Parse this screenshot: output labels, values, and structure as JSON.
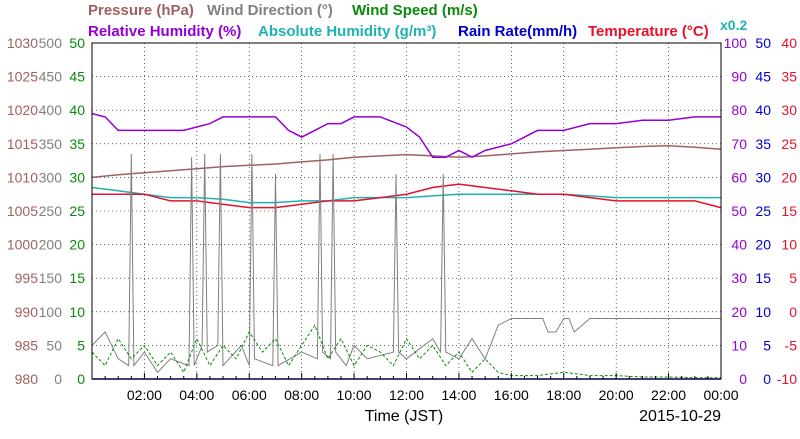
{
  "chart_data": {
    "type": "line",
    "date": "2015-10-29",
    "xlabel": "Time (JST)",
    "x_ticks": [
      "02:00",
      "04:00",
      "06:00",
      "08:00",
      "10:00",
      "12:00",
      "14:00",
      "16:00",
      "18:00",
      "20:00",
      "22:00",
      "00:00"
    ],
    "x_range_hours": [
      0,
      24
    ],
    "legend": {
      "row1": [
        {
          "text": "Pressure (hPa)",
          "color": "#a06060"
        },
        {
          "text": "Wind Direction (°)",
          "color": "#808080"
        },
        {
          "text": "Wind Speed (m/s)",
          "color": "#0a8a0a"
        }
      ],
      "row2": [
        {
          "text": "Relative Humidity (%)",
          "color": "#9400d3"
        },
        {
          "text": "Absolute Humidity (g/m³)",
          "color": "#20b2b2"
        },
        {
          "text": "Rain Rate(mm/h)",
          "color": "#0000cc"
        },
        {
          "text": "Temperature (°C)",
          "color": "#e8102a"
        },
        {
          "text": "x0.2",
          "color": "#20b2b2"
        }
      ]
    },
    "axes": {
      "pressure": {
        "color": "#a06060",
        "ticks": [
          "1030",
          "1025",
          "1020",
          "1015",
          "1010",
          "1005",
          "1000",
          "995",
          "990",
          "985",
          "980"
        ],
        "range": [
          980,
          1030
        ]
      },
      "wind_direction": {
        "color": "#808080",
        "ticks": [
          "500",
          "450",
          "400",
          "350",
          "300",
          "250",
          "200",
          "150",
          "100",
          "50",
          "0"
        ],
        "range": [
          0,
          500
        ]
      },
      "wind_speed": {
        "color": "#0a8a0a",
        "ticks": [
          "50",
          "45",
          "40",
          "35",
          "30",
          "25",
          "20",
          "15",
          "10",
          "5",
          "0"
        ],
        "range": [
          0,
          50
        ]
      },
      "relative_humidity": {
        "color": "#9400d3",
        "ticks": [
          "100",
          "90",
          "80",
          "70",
          "60",
          "50",
          "40",
          "30",
          "20",
          "10",
          "0"
        ],
        "range": [
          0,
          100
        ]
      },
      "rain_rate": {
        "color": "#0000cc",
        "ticks": [
          "50",
          "45",
          "40",
          "35",
          "30",
          "25",
          "20",
          "15",
          "10",
          "5",
          "0"
        ],
        "range": [
          0,
          50
        ]
      },
      "temperature": {
        "color": "#e8102a",
        "ticks": [
          "40",
          "35",
          "30",
          "25",
          "20",
          "15",
          "10",
          "5",
          "0",
          "-5",
          "-10"
        ],
        "range": [
          -10,
          40
        ]
      }
    },
    "grid": true,
    "series": [
      {
        "name": "Pressure (hPa)",
        "axis": "pressure",
        "color": "#a06060",
        "x": [
          0,
          1,
          2,
          3,
          4,
          5,
          6,
          7,
          8,
          9,
          10,
          11,
          12,
          13,
          14,
          15,
          16,
          17,
          18,
          19,
          20,
          21,
          22,
          23,
          24
        ],
        "y": [
          1010,
          1010.4,
          1010.7,
          1011,
          1011.3,
          1011.6,
          1011.8,
          1012,
          1012.3,
          1012.6,
          1013,
          1013.2,
          1013.4,
          1013.2,
          1013,
          1013.2,
          1013.5,
          1013.8,
          1014,
          1014.2,
          1014.4,
          1014.6,
          1014.7,
          1014.5,
          1014.2
        ]
      },
      {
        "name": "Relative Humidity (%)",
        "axis": "relative_humidity",
        "color": "#9400d3",
        "x": [
          0,
          0.5,
          1,
          2,
          3,
          3.5,
          4,
          4.5,
          5,
          6,
          7,
          7.5,
          8,
          8.5,
          9,
          9.5,
          10,
          11,
          12,
          12.5,
          13,
          13.5,
          14,
          14.5,
          15,
          16,
          17,
          18,
          19,
          20,
          21,
          22,
          23,
          24
        ],
        "y": [
          79,
          78,
          74,
          74,
          74,
          74,
          75,
          76,
          78,
          78,
          78,
          74,
          72,
          74,
          76,
          76,
          78,
          78,
          75,
          72,
          66,
          66,
          68,
          66,
          68,
          70,
          74,
          74,
          76,
          76,
          77,
          77,
          78,
          78
        ]
      },
      {
        "name": "Absolute Humidity (g/m³)",
        "axis": "relative_humidity",
        "color": "#20b2b2",
        "x": [
          0,
          1,
          2,
          3,
          4,
          5,
          6,
          7,
          8,
          9,
          10,
          11,
          12,
          13,
          14,
          15,
          16,
          17,
          18,
          19,
          20,
          21,
          22,
          23,
          24
        ],
        "y": [
          57,
          56,
          55,
          54,
          54,
          53.5,
          52.5,
          52.5,
          53,
          53,
          54,
          54,
          54,
          54.5,
          55,
          55,
          55,
          55,
          55,
          54.5,
          54,
          54,
          54,
          54,
          54
        ]
      },
      {
        "name": "Temperature (°C)",
        "axis": "temperature",
        "color": "#e8102a",
        "x": [
          0,
          1,
          2,
          3,
          4,
          5,
          6,
          7,
          8,
          9,
          10,
          11,
          12,
          13,
          14,
          15,
          16,
          17,
          18,
          19,
          20,
          21,
          22,
          23,
          24
        ],
        "y": [
          17.5,
          17.5,
          17.5,
          16.5,
          16.5,
          16,
          15.5,
          15.5,
          16,
          16.5,
          16.5,
          17,
          17.5,
          18.5,
          19,
          18.5,
          18,
          17.5,
          17.5,
          17,
          16.5,
          16.5,
          16.5,
          16.5,
          15.5
        ]
      },
      {
        "name": "Wind Direction (°)",
        "axis": "wind_direction",
        "color": "#808080",
        "x": [
          0,
          0.5,
          1,
          1.4,
          1.5,
          1.6,
          2,
          2.5,
          3,
          3.7,
          3.8,
          3.9,
          4.2,
          4.3,
          4.4,
          4.8,
          4.9,
          5,
          5.7,
          6,
          6.1,
          6.2,
          6.9,
          7,
          7.1,
          8,
          8.6,
          8.7,
          8.8,
          9.1,
          9.2,
          9.3,
          9.7,
          10,
          10.5,
          11.5,
          11.6,
          11.7,
          12,
          13,
          13.3,
          13.4,
          13.5,
          14,
          14.5,
          15,
          15.3,
          15.5,
          16,
          17,
          17.2,
          17.4,
          17.7,
          18,
          18.2,
          18.4,
          19,
          20,
          21,
          22,
          23,
          24
        ],
        "y": [
          50,
          70,
          30,
          20,
          335,
          20,
          40,
          10,
          30,
          20,
          330,
          20,
          50,
          335,
          40,
          50,
          335,
          20,
          50,
          20,
          335,
          30,
          20,
          305,
          20,
          40,
          30,
          335,
          40,
          30,
          335,
          40,
          20,
          50,
          30,
          40,
          305,
          40,
          30,
          60,
          40,
          305,
          40,
          30,
          60,
          30,
          60,
          80,
          90,
          90,
          90,
          70,
          70,
          90,
          90,
          70,
          90,
          90,
          90,
          90,
          90,
          90
        ]
      },
      {
        "name": "Wind Speed (m/s)",
        "axis": "wind_speed",
        "color": "#0a8a0a",
        "x": [
          0,
          0.5,
          1,
          1.5,
          2,
          2.5,
          3,
          3.5,
          4,
          4.5,
          5,
          5.5,
          6,
          6.5,
          7,
          7.5,
          8,
          8.5,
          9,
          9.5,
          10,
          10.5,
          11,
          11.5,
          12,
          12.5,
          13,
          13.5,
          14,
          14.5,
          15,
          15.5,
          16,
          17,
          18,
          19,
          20,
          21,
          22,
          23,
          24
        ],
        "y": [
          4,
          2,
          6,
          3,
          5,
          2,
          4,
          1,
          6,
          2,
          5,
          3,
          7,
          4,
          6,
          2,
          5,
          8,
          3,
          6,
          2,
          5,
          4,
          2,
          6,
          3,
          5,
          2,
          4,
          1,
          3,
          1,
          0.5,
          0.5,
          1,
          0.5,
          0.5,
          0.3,
          0.3,
          0.2,
          0.2
        ]
      },
      {
        "name": "Rain Rate(mm/h)",
        "axis": "rain_rate",
        "color": "#0000cc",
        "x": [
          0,
          24
        ],
        "y": [
          0,
          0
        ]
      }
    ]
  }
}
